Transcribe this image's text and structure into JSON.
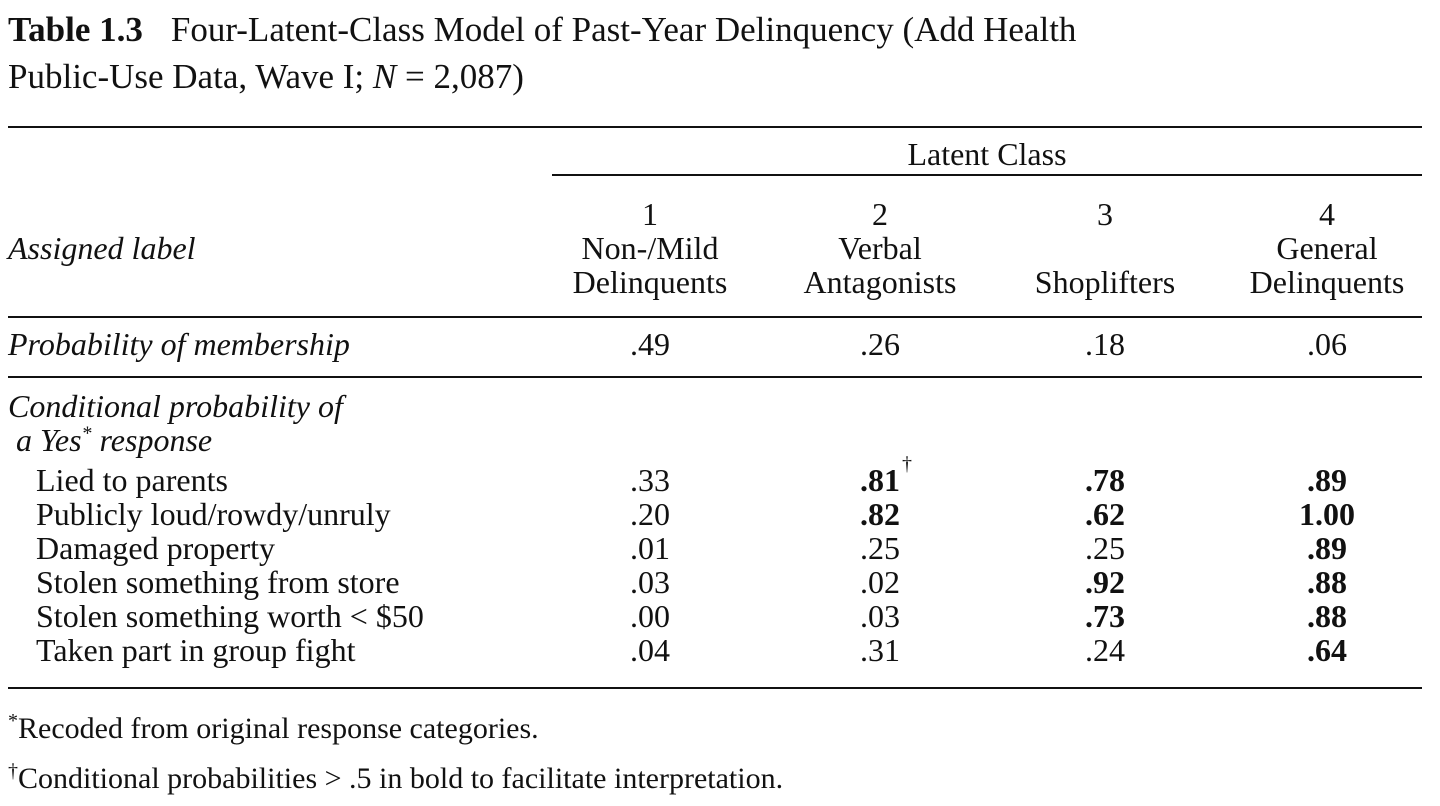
{
  "caption": {
    "table_number": "Table 1.3",
    "title_part1": "Four-Latent-Class Model of Past-Year Delinquency (Add Health",
    "title_part2": "Public-Use Data, Wave I; ",
    "n_symbol": "N",
    "n_value": " = 2,087)"
  },
  "header": {
    "group_label": "Latent Class",
    "row_label": "Assigned label",
    "classes": [
      {
        "number": "1",
        "line1": "Non-/Mild",
        "line2": "Delinquents"
      },
      {
        "number": "2",
        "line1": "Verbal",
        "line2": "Antagonists"
      },
      {
        "number": "3",
        "line1": "",
        "line2": "Shoplifters"
      },
      {
        "number": "4",
        "line1": "General",
        "line2": "Delinquents"
      }
    ]
  },
  "membership": {
    "label": "Probability of membership",
    "values": [
      ".49",
      ".26",
      ".18",
      ".06"
    ]
  },
  "conditional": {
    "label_line1": "Conditional probability of",
    "label_line2": "a Yes",
    "label_mark": "*",
    "label_line2_end": " response",
    "dagger": "†",
    "rows": [
      {
        "label": "Lied to parents",
        "values": [
          ".33",
          ".81",
          ".78",
          ".89"
        ],
        "bold": [
          false,
          true,
          true,
          true
        ]
      },
      {
        "label": "Publicly loud/rowdy/unruly",
        "values": [
          ".20",
          ".82",
          ".62",
          "1.00"
        ],
        "bold": [
          false,
          true,
          true,
          true
        ]
      },
      {
        "label": "Damaged property",
        "values": [
          ".01",
          ".25",
          ".25",
          ".89"
        ],
        "bold": [
          false,
          false,
          false,
          true
        ]
      },
      {
        "label": "Stolen something from store",
        "values": [
          ".03",
          ".02",
          ".92",
          ".88"
        ],
        "bold": [
          false,
          false,
          true,
          true
        ]
      },
      {
        "label": "Stolen something worth < $50",
        "values": [
          ".00",
          ".03",
          ".73",
          ".88"
        ],
        "bold": [
          false,
          false,
          true,
          true
        ]
      },
      {
        "label": "Taken part in group fight",
        "values": [
          ".04",
          ".31",
          ".24",
          ".64"
        ],
        "bold": [
          false,
          false,
          false,
          true
        ]
      }
    ]
  },
  "footnotes": {
    "star_mark": "*",
    "star_text": "Recoded from original response categories.",
    "dagger_mark": "†",
    "dagger_text": "Conditional probabilities > .5 in bold to facilitate interpretation."
  }
}
